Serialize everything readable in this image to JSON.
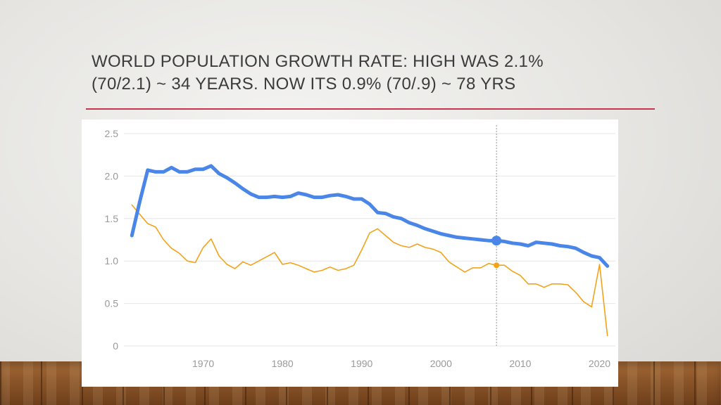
{
  "slide": {
    "title": "WORLD POPULATION GROWTH RATE:  HIGH WAS 2.1%\n(70/2.1) ~ 34 YEARS.  NOW ITS 0.9% (70/.9) ~ 78 YRS"
  },
  "colors": {
    "accent_rule": "#c8344d",
    "series_blue": "#4a86e8",
    "series_orange": "#f2a31b",
    "gridline": "#e6e6e6",
    "tick_text": "#999999"
  },
  "chart_data": {
    "type": "line",
    "title": "",
    "xlabel": "",
    "ylabel": "",
    "xlim": [
      1960,
      2022
    ],
    "ylim": [
      0,
      2.5
    ],
    "grid": true,
    "x_ticks": [
      1970,
      1980,
      1990,
      2000,
      2010,
      2020
    ],
    "y_ticks": [
      0,
      0.5,
      1.0,
      1.5,
      2.0,
      2.5
    ],
    "y_tick_labels": [
      "0",
      "0.5",
      "1.0",
      "1.5",
      "2.0",
      "2.5"
    ],
    "highlight_x": 2007,
    "series": [
      {
        "name": "",
        "color": "#4a86e8",
        "points": [
          [
            1961,
            1.3
          ],
          [
            1962,
            1.7
          ],
          [
            1963,
            2.07
          ],
          [
            1964,
            2.05
          ],
          [
            1965,
            2.05
          ],
          [
            1966,
            2.1
          ],
          [
            1967,
            2.05
          ],
          [
            1968,
            2.05
          ],
          [
            1969,
            2.08
          ],
          [
            1970,
            2.08
          ],
          [
            1971,
            2.12
          ],
          [
            1972,
            2.03
          ],
          [
            1973,
            1.98
          ],
          [
            1974,
            1.92
          ],
          [
            1975,
            1.85
          ],
          [
            1976,
            1.79
          ],
          [
            1977,
            1.75
          ],
          [
            1978,
            1.75
          ],
          [
            1979,
            1.76
          ],
          [
            1980,
            1.75
          ],
          [
            1981,
            1.76
          ],
          [
            1982,
            1.8
          ],
          [
            1983,
            1.78
          ],
          [
            1984,
            1.75
          ],
          [
            1985,
            1.75
          ],
          [
            1986,
            1.77
          ],
          [
            1987,
            1.78
          ],
          [
            1988,
            1.76
          ],
          [
            1989,
            1.73
          ],
          [
            1990,
            1.73
          ],
          [
            1991,
            1.67
          ],
          [
            1992,
            1.57
          ],
          [
            1993,
            1.56
          ],
          [
            1994,
            1.52
          ],
          [
            1995,
            1.5
          ],
          [
            1996,
            1.45
          ],
          [
            1997,
            1.42
          ],
          [
            1998,
            1.38
          ],
          [
            1999,
            1.35
          ],
          [
            2000,
            1.32
          ],
          [
            2001,
            1.3
          ],
          [
            2002,
            1.28
          ],
          [
            2003,
            1.27
          ],
          [
            2004,
            1.26
          ],
          [
            2005,
            1.25
          ],
          [
            2006,
            1.24
          ],
          [
            2007,
            1.24
          ],
          [
            2008,
            1.23
          ],
          [
            2009,
            1.21
          ],
          [
            2010,
            1.2
          ],
          [
            2011,
            1.18
          ],
          [
            2012,
            1.22
          ],
          [
            2013,
            1.21
          ],
          [
            2014,
            1.2
          ],
          [
            2015,
            1.18
          ],
          [
            2016,
            1.17
          ],
          [
            2017,
            1.15
          ],
          [
            2018,
            1.1
          ],
          [
            2019,
            1.06
          ],
          [
            2020,
            1.04
          ],
          [
            2021,
            0.94
          ]
        ]
      },
      {
        "name": "",
        "color": "#f2a31b",
        "points": [
          [
            1961,
            1.66
          ],
          [
            1962,
            1.55
          ],
          [
            1963,
            1.44
          ],
          [
            1964,
            1.4
          ],
          [
            1965,
            1.25
          ],
          [
            1966,
            1.15
          ],
          [
            1967,
            1.09
          ],
          [
            1968,
            1.0
          ],
          [
            1969,
            0.98
          ],
          [
            1970,
            1.16
          ],
          [
            1971,
            1.26
          ],
          [
            1972,
            1.06
          ],
          [
            1973,
            0.96
          ],
          [
            1974,
            0.91
          ],
          [
            1975,
            0.99
          ],
          [
            1976,
            0.95
          ],
          [
            1977,
            1.0
          ],
          [
            1978,
            1.05
          ],
          [
            1979,
            1.1
          ],
          [
            1980,
            0.96
          ],
          [
            1981,
            0.98
          ],
          [
            1982,
            0.95
          ],
          [
            1983,
            0.91
          ],
          [
            1984,
            0.87
          ],
          [
            1985,
            0.89
          ],
          [
            1986,
            0.93
          ],
          [
            1987,
            0.89
          ],
          [
            1988,
            0.91
          ],
          [
            1989,
            0.95
          ],
          [
            1990,
            1.13
          ],
          [
            1991,
            1.33
          ],
          [
            1992,
            1.38
          ],
          [
            1993,
            1.3
          ],
          [
            1994,
            1.22
          ],
          [
            1995,
            1.18
          ],
          [
            1996,
            1.16
          ],
          [
            1997,
            1.2
          ],
          [
            1998,
            1.16
          ],
          [
            1999,
            1.14
          ],
          [
            2000,
            1.1
          ],
          [
            2001,
            0.99
          ],
          [
            2002,
            0.93
          ],
          [
            2003,
            0.87
          ],
          [
            2004,
            0.92
          ],
          [
            2005,
            0.92
          ],
          [
            2006,
            0.97
          ],
          [
            2007,
            0.95
          ],
          [
            2008,
            0.95
          ],
          [
            2009,
            0.88
          ],
          [
            2010,
            0.83
          ],
          [
            2011,
            0.73
          ],
          [
            2012,
            0.73
          ],
          [
            2013,
            0.69
          ],
          [
            2014,
            0.73
          ],
          [
            2015,
            0.73
          ],
          [
            2016,
            0.72
          ],
          [
            2017,
            0.63
          ],
          [
            2018,
            0.52
          ],
          [
            2019,
            0.46
          ],
          [
            2020,
            0.96
          ],
          [
            2021,
            0.12
          ]
        ]
      }
    ]
  }
}
